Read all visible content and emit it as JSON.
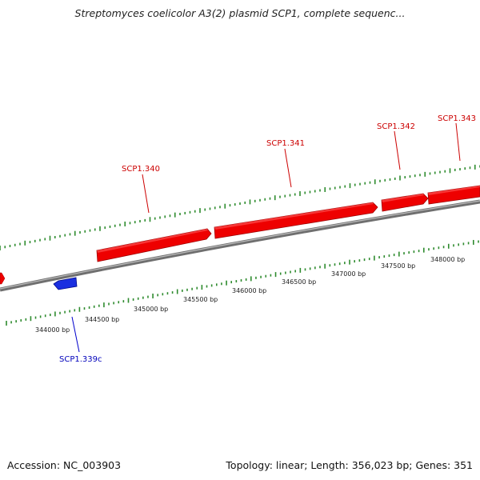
{
  "map": {
    "title": "Streptomyces coelicolor A3(2) plasmid SCP1, complete sequenc...",
    "accession": "Accession: NC_003903",
    "summary": "Topology: linear; Length: 356,023 bp; Genes: 351"
  },
  "colors": {
    "forward_gene": "#ee0000",
    "reverse_gene": "#0022dd",
    "backbone": "#888888",
    "ticks": "#2e8b2e",
    "forward_label": "#cc0000",
    "reverse_label": "#0000bb"
  },
  "ruler": {
    "labels": [
      "344000 bp",
      "344500 bp",
      "345000 bp",
      "345500 bp",
      "346000 bp",
      "346500 bp",
      "347000 bp",
      "347500 bp",
      "348000 bp"
    ]
  },
  "genes": [
    {
      "label": "SCP1.339c",
      "strand": "reverse"
    },
    {
      "label": "SCP1.340",
      "strand": "forward"
    },
    {
      "label": "SCP1.341",
      "strand": "forward"
    },
    {
      "label": "SCP1.342",
      "strand": "forward"
    },
    {
      "label": "SCP1.343",
      "strand": "forward"
    }
  ]
}
